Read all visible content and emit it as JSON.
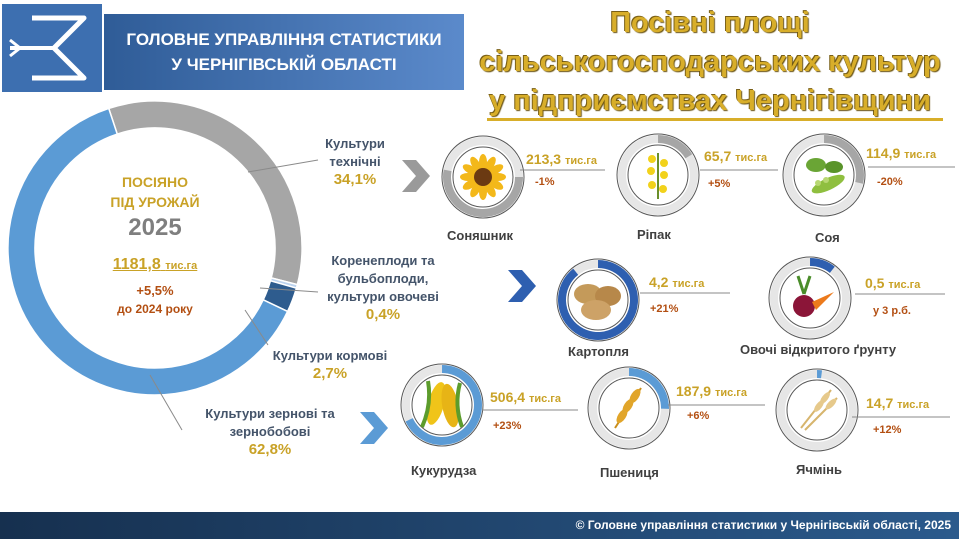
{
  "header": {
    "org_line1": "ГОЛОВНЕ УПРАВЛІННЯ СТАТИСТИКИ",
    "org_line2": "У ЧЕРНІГІВСЬКІЙ ОБЛАСТІ"
  },
  "title": {
    "line1": "Посівні площі",
    "line2": "сільськогосподарських культур",
    "line3": "у підприємствах Чернігівщини"
  },
  "center": {
    "line1": "ПОСІЯНО",
    "line2": "ПІД УРОЖАЙ",
    "year": "2025",
    "total": "1181,8",
    "total_unit": "тис.га",
    "change": "+5,5%",
    "change_note": "до 2024 року"
  },
  "categories": [
    {
      "label": "Культури технічні",
      "pct": "34,1%"
    },
    {
      "label": "Коренеплоди та бульбоплоди, культури овочеві",
      "pct": "0,4%"
    },
    {
      "label": "Культури кормові",
      "pct": "2,7%"
    },
    {
      "label": "Культури зернові та зернобобові",
      "pct": "62,8%"
    }
  ],
  "crops": [
    {
      "name": "Соняшник",
      "value": "213,3",
      "unit": "тис.га",
      "change": "-1%"
    },
    {
      "name": "Ріпак",
      "value": "65,7",
      "unit": "тис.га",
      "change": "+5%"
    },
    {
      "name": "Соя",
      "value": "114,9",
      "unit": "тис.га",
      "change": "-20%"
    },
    {
      "name": "Картопля",
      "value": "4,2",
      "unit": "тис.га",
      "change": "+21%"
    },
    {
      "name": "Овочі відкритого ґрунту",
      "value": "0,5",
      "unit": "тис.га",
      "change": "у 3 р.б."
    },
    {
      "name": "Кукурудза",
      "value": "506,4",
      "unit": "тис.га",
      "change": "+23%"
    },
    {
      "name": "Пшениця",
      "value": "187,9",
      "unit": "тис.га",
      "change": "+6%"
    },
    {
      "name": "Ячмінь",
      "value": "14,7",
      "unit": "тис.га",
      "change": "+12%"
    }
  ],
  "footer": "© Головне управління статистики у Чернігівській області, 2025",
  "colors": {
    "accent_gold": "#d8ae2a",
    "grain_blue": "#5b9bd5",
    "technical_gray": "#a6a6a6",
    "fodder_navy": "#2e5c8e",
    "root_light": "#bcd3ee"
  },
  "chart_data": [
    {
      "type": "pie",
      "subtype": "donut",
      "categories": [
        "Культури технічні",
        "Коренеплоди та бульбоплоди, культури овочеві",
        "Культури кормові",
        "Культури зернові та зернобобові"
      ],
      "values": [
        34.1,
        0.4,
        2.7,
        62.8
      ],
      "unit": "%",
      "total": 1181.8,
      "year": 2025
    },
    {
      "type": "pie",
      "subtype": "ring-progress",
      "categories": [
        "Соняшник",
        "Ріпак",
        "Соя",
        "Картопля",
        "Овочі відкритого ґрунту",
        "Кукурудза",
        "Пшениця",
        "Ячмінь"
      ],
      "values": [
        213.3,
        65.7,
        114.9,
        4.2,
        0.5,
        506.4,
        187.9,
        14.7
      ],
      "unit": "тис.га"
    }
  ]
}
